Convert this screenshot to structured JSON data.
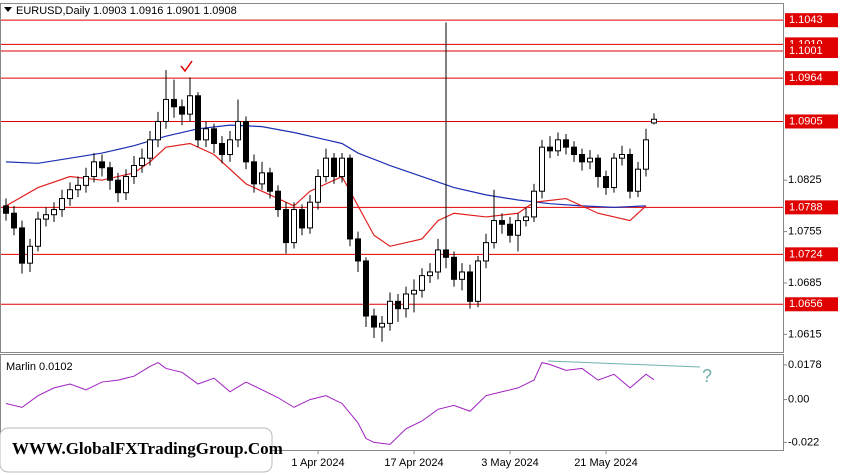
{
  "chart_data": [
    {
      "type": "candlestick",
      "title": "EURUSD,Daily  1.0903 1.0916 1.0901 1.0908",
      "categories": [
        null,
        null,
        null,
        null,
        null,
        null,
        null,
        null,
        null,
        null,
        null,
        null,
        null,
        null,
        null,
        null,
        null,
        null,
        null,
        null,
        null,
        null,
        null,
        null,
        null,
        null,
        null,
        null,
        null,
        null,
        null,
        null,
        null,
        null,
        null,
        null,
        null,
        null,
        null,
        "1 Apr 2024",
        null,
        null,
        null,
        null,
        null,
        null,
        null,
        null,
        null,
        null,
        null,
        "17 Apr 2024",
        null,
        null,
        null,
        null,
        null,
        null,
        null,
        null,
        null,
        null,
        null,
        "3 May 2024",
        null,
        null,
        null,
        null,
        null,
        null,
        null,
        null,
        null,
        null,
        null,
        "21 May 2024",
        null,
        null,
        null,
        null,
        null,
        null
      ],
      "ohlc": [
        [
          1.079,
          1.08,
          1.077,
          1.078
        ],
        [
          1.078,
          1.079,
          1.075,
          1.076
        ],
        [
          1.076,
          1.077,
          1.0698,
          1.0712
        ],
        [
          1.0712,
          1.0745,
          1.07,
          1.0735
        ],
        [
          1.0735,
          1.0782,
          1.0728,
          1.0772
        ],
        [
          1.0772,
          1.0788,
          1.0762,
          1.0778
        ],
        [
          1.0778,
          1.0795,
          1.0768,
          1.0785
        ],
        [
          1.0785,
          1.0812,
          1.0775,
          1.08
        ],
        [
          1.08,
          1.0822,
          1.079,
          1.0812
        ],
        [
          1.0812,
          1.083,
          1.0802,
          1.0818
        ],
        [
          1.0818,
          1.0842,
          1.0808,
          1.083
        ],
        [
          1.083,
          1.0862,
          1.0822,
          1.085
        ],
        [
          1.085,
          1.086,
          1.083,
          1.0842
        ],
        [
          1.0842,
          1.085,
          1.0812,
          1.0825
        ],
        [
          1.0825,
          1.0835,
          1.0795,
          1.0808
        ],
        [
          1.0808,
          1.084,
          1.0798,
          1.083
        ],
        [
          1.083,
          1.0858,
          1.082,
          1.0845
        ],
        [
          1.0845,
          1.0868,
          1.0835,
          1.0855
        ],
        [
          1.0855,
          1.0892,
          1.0845,
          1.088
        ],
        [
          1.088,
          1.0918,
          1.087,
          1.0905
        ],
        [
          1.0905,
          1.0975,
          1.0895,
          1.0935
        ],
        [
          1.0935,
          1.0962,
          1.091,
          1.0925
        ],
        [
          1.0925,
          1.0935,
          1.09,
          1.0915
        ],
        [
          1.0915,
          1.0965,
          1.0905,
          1.094
        ],
        [
          1.094,
          1.0945,
          1.087,
          1.088
        ],
        [
          1.088,
          1.0905,
          1.087,
          1.0895
        ],
        [
          1.0895,
          1.0902,
          1.0862,
          1.0875
        ],
        [
          1.0875,
          1.0885,
          1.0848,
          1.086
        ],
        [
          1.086,
          1.0892,
          1.085,
          1.088
        ],
        [
          1.088,
          1.0935,
          1.087,
          1.0905
        ],
        [
          1.0905,
          1.0912,
          1.084,
          1.085
        ],
        [
          1.085,
          1.086,
          1.0808,
          1.082
        ],
        [
          1.082,
          1.085,
          1.0812,
          1.0835
        ],
        [
          1.0835,
          1.0842,
          1.08,
          1.081
        ],
        [
          1.081,
          1.0818,
          1.0775,
          1.0785
        ],
        [
          1.0785,
          1.0795,
          1.0725,
          1.074
        ],
        [
          1.074,
          1.0795,
          1.0732,
          1.0785
        ],
        [
          1.0785,
          1.0792,
          1.075,
          1.076
        ],
        [
          1.076,
          1.0805,
          1.0752,
          1.0795
        ],
        [
          1.0795,
          1.084,
          1.0785,
          1.083
        ],
        [
          1.083,
          1.0868,
          1.0822,
          1.0855
        ],
        [
          1.0855,
          1.0862,
          1.082,
          1.083
        ],
        [
          1.083,
          1.0862,
          1.0822,
          1.0855
        ],
        [
          1.0855,
          1.086,
          1.0735,
          1.0745
        ],
        [
          1.0745,
          1.0755,
          1.07,
          1.0715
        ],
        [
          1.0715,
          1.072,
          1.0625,
          1.064
        ],
        [
          1.064,
          1.065,
          1.061,
          1.0625
        ],
        [
          1.0625,
          1.064,
          1.0605,
          1.063
        ],
        [
          1.063,
          1.0672,
          1.062,
          1.066
        ],
        [
          1.066,
          1.067,
          1.0632,
          1.065
        ],
        [
          1.065,
          1.068,
          1.0638,
          1.067
        ],
        [
          1.067,
          1.069,
          1.0645,
          1.0675
        ],
        [
          1.0675,
          1.0705,
          1.0665,
          1.0695
        ],
        [
          1.0695,
          1.0712,
          1.0685,
          1.07
        ],
        [
          1.07,
          1.0745,
          1.069,
          1.073
        ],
        [
          1.073,
          1.104,
          1.0705,
          1.072
        ],
        [
          1.072,
          1.0728,
          1.068,
          1.069
        ],
        [
          1.069,
          1.0712,
          1.0675,
          1.07
        ],
        [
          1.07,
          1.071,
          1.065,
          1.066
        ],
        [
          1.066,
          1.0722,
          1.0652,
          1.0715
        ],
        [
          1.0715,
          1.0752,
          1.0705,
          1.074
        ],
        [
          1.074,
          1.0812,
          1.0732,
          1.077
        ],
        [
          1.077,
          1.078,
          1.0752,
          1.0765
        ],
        [
          1.0765,
          1.0775,
          1.074,
          1.075
        ],
        [
          1.075,
          1.078,
          1.0728,
          1.077
        ],
        [
          1.077,
          1.0788,
          1.0762,
          1.0775
        ],
        [
          1.0775,
          1.082,
          1.0768,
          1.081
        ],
        [
          1.081,
          1.088,
          1.08,
          1.087
        ],
        [
          1.087,
          1.0885,
          1.0855,
          1.0865
        ],
        [
          1.0865,
          1.089,
          1.0858,
          1.088
        ],
        [
          1.088,
          1.0888,
          1.086,
          1.087
        ],
        [
          1.087,
          1.0878,
          1.085,
          1.086
        ],
        [
          1.086,
          1.0868,
          1.0838,
          1.085
        ],
        [
          1.085,
          1.0866,
          1.084,
          1.0855
        ],
        [
          1.0855,
          1.086,
          1.0815,
          1.083
        ],
        [
          1.083,
          1.0838,
          1.0805,
          1.0815
        ],
        [
          1.0815,
          1.0862,
          1.0808,
          1.0855
        ],
        [
          1.0855,
          1.0872,
          1.0845,
          1.086
        ],
        [
          1.086,
          1.0868,
          1.08,
          1.081
        ],
        [
          1.081,
          1.085,
          1.0802,
          1.084
        ],
        [
          1.084,
          1.0895,
          1.083,
          1.088
        ],
        [
          1.0903,
          1.0916,
          1.0901,
          1.0908
        ]
      ],
      "up_color": "#ffffff",
      "down_color": "#000000",
      "ylim": [
        1.0591,
        1.1065
      ],
      "yticks": [
        1.0615,
        1.0685,
        1.0755,
        1.0825
      ],
      "levels": [
        1.1043,
        {
          "value": 1.101,
          "label": "1.1010"
        },
        1.1001,
        1.0964,
        1.0905,
        1.0788,
        1.0724,
        1.0656
      ],
      "level_color": "#e00000",
      "lines": [
        {
          "color": "#1c2fb5",
          "x": [
            0,
            4,
            8,
            12,
            16,
            20,
            24,
            28,
            32,
            36,
            40,
            42,
            44,
            48,
            52,
            56,
            60,
            64,
            68,
            72,
            76,
            80
          ],
          "values": [
            1.085,
            1.0848,
            1.0855,
            1.0862,
            1.0872,
            1.0885,
            1.0895,
            1.09,
            1.0898,
            1.089,
            1.088,
            1.0875,
            1.0862,
            1.0845,
            1.083,
            1.0815,
            1.0805,
            1.0798,
            1.0793,
            1.079,
            1.0788,
            1.079
          ]
        },
        {
          "color": "#e02020",
          "x": [
            0,
            4,
            8,
            12,
            16,
            18,
            20,
            23,
            26,
            30,
            34,
            36,
            38,
            40,
            42,
            44,
            46,
            48,
            52,
            54,
            56,
            60,
            64,
            66,
            70,
            74,
            78,
            80
          ],
          "values": [
            1.079,
            1.0815,
            1.083,
            1.0825,
            1.0835,
            1.085,
            1.087,
            1.0875,
            1.086,
            1.082,
            1.08,
            1.079,
            1.081,
            1.082,
            1.083,
            1.079,
            1.075,
            1.0735,
            1.0745,
            1.077,
            1.078,
            1.0775,
            1.078,
            1.0795,
            1.08,
            1.078,
            1.077,
            1.079
          ]
        }
      ]
    },
    {
      "type": "line",
      "title": "Marlin 0.0102",
      "color": "#a020c0",
      "x": [
        0,
        2,
        4,
        6,
        8,
        10,
        12,
        14,
        16,
        18,
        19,
        20,
        22,
        24,
        26,
        28,
        30,
        32,
        34,
        36,
        38,
        40,
        42,
        44,
        45,
        46,
        48,
        50,
        52,
        54,
        56,
        58,
        60,
        62,
        64,
        66,
        67,
        68,
        70,
        72,
        74,
        76,
        78,
        80,
        81
      ],
      "values": [
        -0.002,
        -0.004,
        0.002,
        0.006,
        0.008,
        0.005,
        0.009,
        0.01,
        0.012,
        0.017,
        0.019,
        0.016,
        0.014,
        0.008,
        0.011,
        0.004,
        0.009,
        0.005,
        0.001,
        -0.004,
        0,
        0.002,
        -0.002,
        -0.012,
        -0.02,
        -0.022,
        -0.023,
        -0.015,
        -0.011,
        -0.005,
        -0.003,
        -0.006,
        0.002,
        0.004,
        0.006,
        0.01,
        0.019,
        0.018,
        0.015,
        0.016,
        0.01,
        0.013,
        0.006,
        0.013,
        0.0102
      ],
      "ylim": [
        -0.0259,
        0.0229
      ],
      "yticks": [
        0.0178,
        {
          "value": 0,
          "label": "0.00"
        },
        -0.022
      ],
      "annotation": "?"
    }
  ],
  "watermark": "WWW.GlobalFXTradingGroup.Com"
}
